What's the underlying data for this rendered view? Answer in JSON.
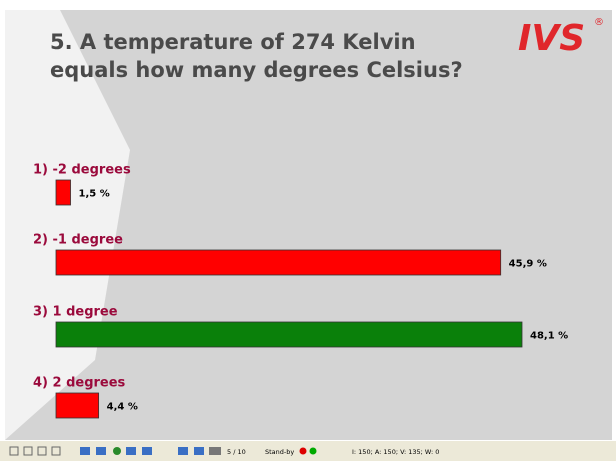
{
  "chart_data": {
    "type": "bar",
    "orientation": "horizontal",
    "title": "5. A temperature of 274 Kelvin equals how many degrees Celsius?",
    "logo": "IVS",
    "logo_mark": "®",
    "categories": [
      "1) -2 degrees",
      "2) -1 degree",
      "3) 1 degree",
      "4) 2 degrees"
    ],
    "values": [
      1.5,
      45.9,
      48.1,
      4.4
    ],
    "value_labels": [
      "1,5 %",
      "45,9 %",
      "48,1 %",
      "4,4 %"
    ],
    "colors": [
      "#ff0000",
      "#ff0000",
      "#0a800a",
      "#ff0000"
    ]
  },
  "toolbar": {
    "page": "5 / 10",
    "status": "Stand-by",
    "counts": "I: 150;  A: 150;  V: 135;  W: 0"
  }
}
